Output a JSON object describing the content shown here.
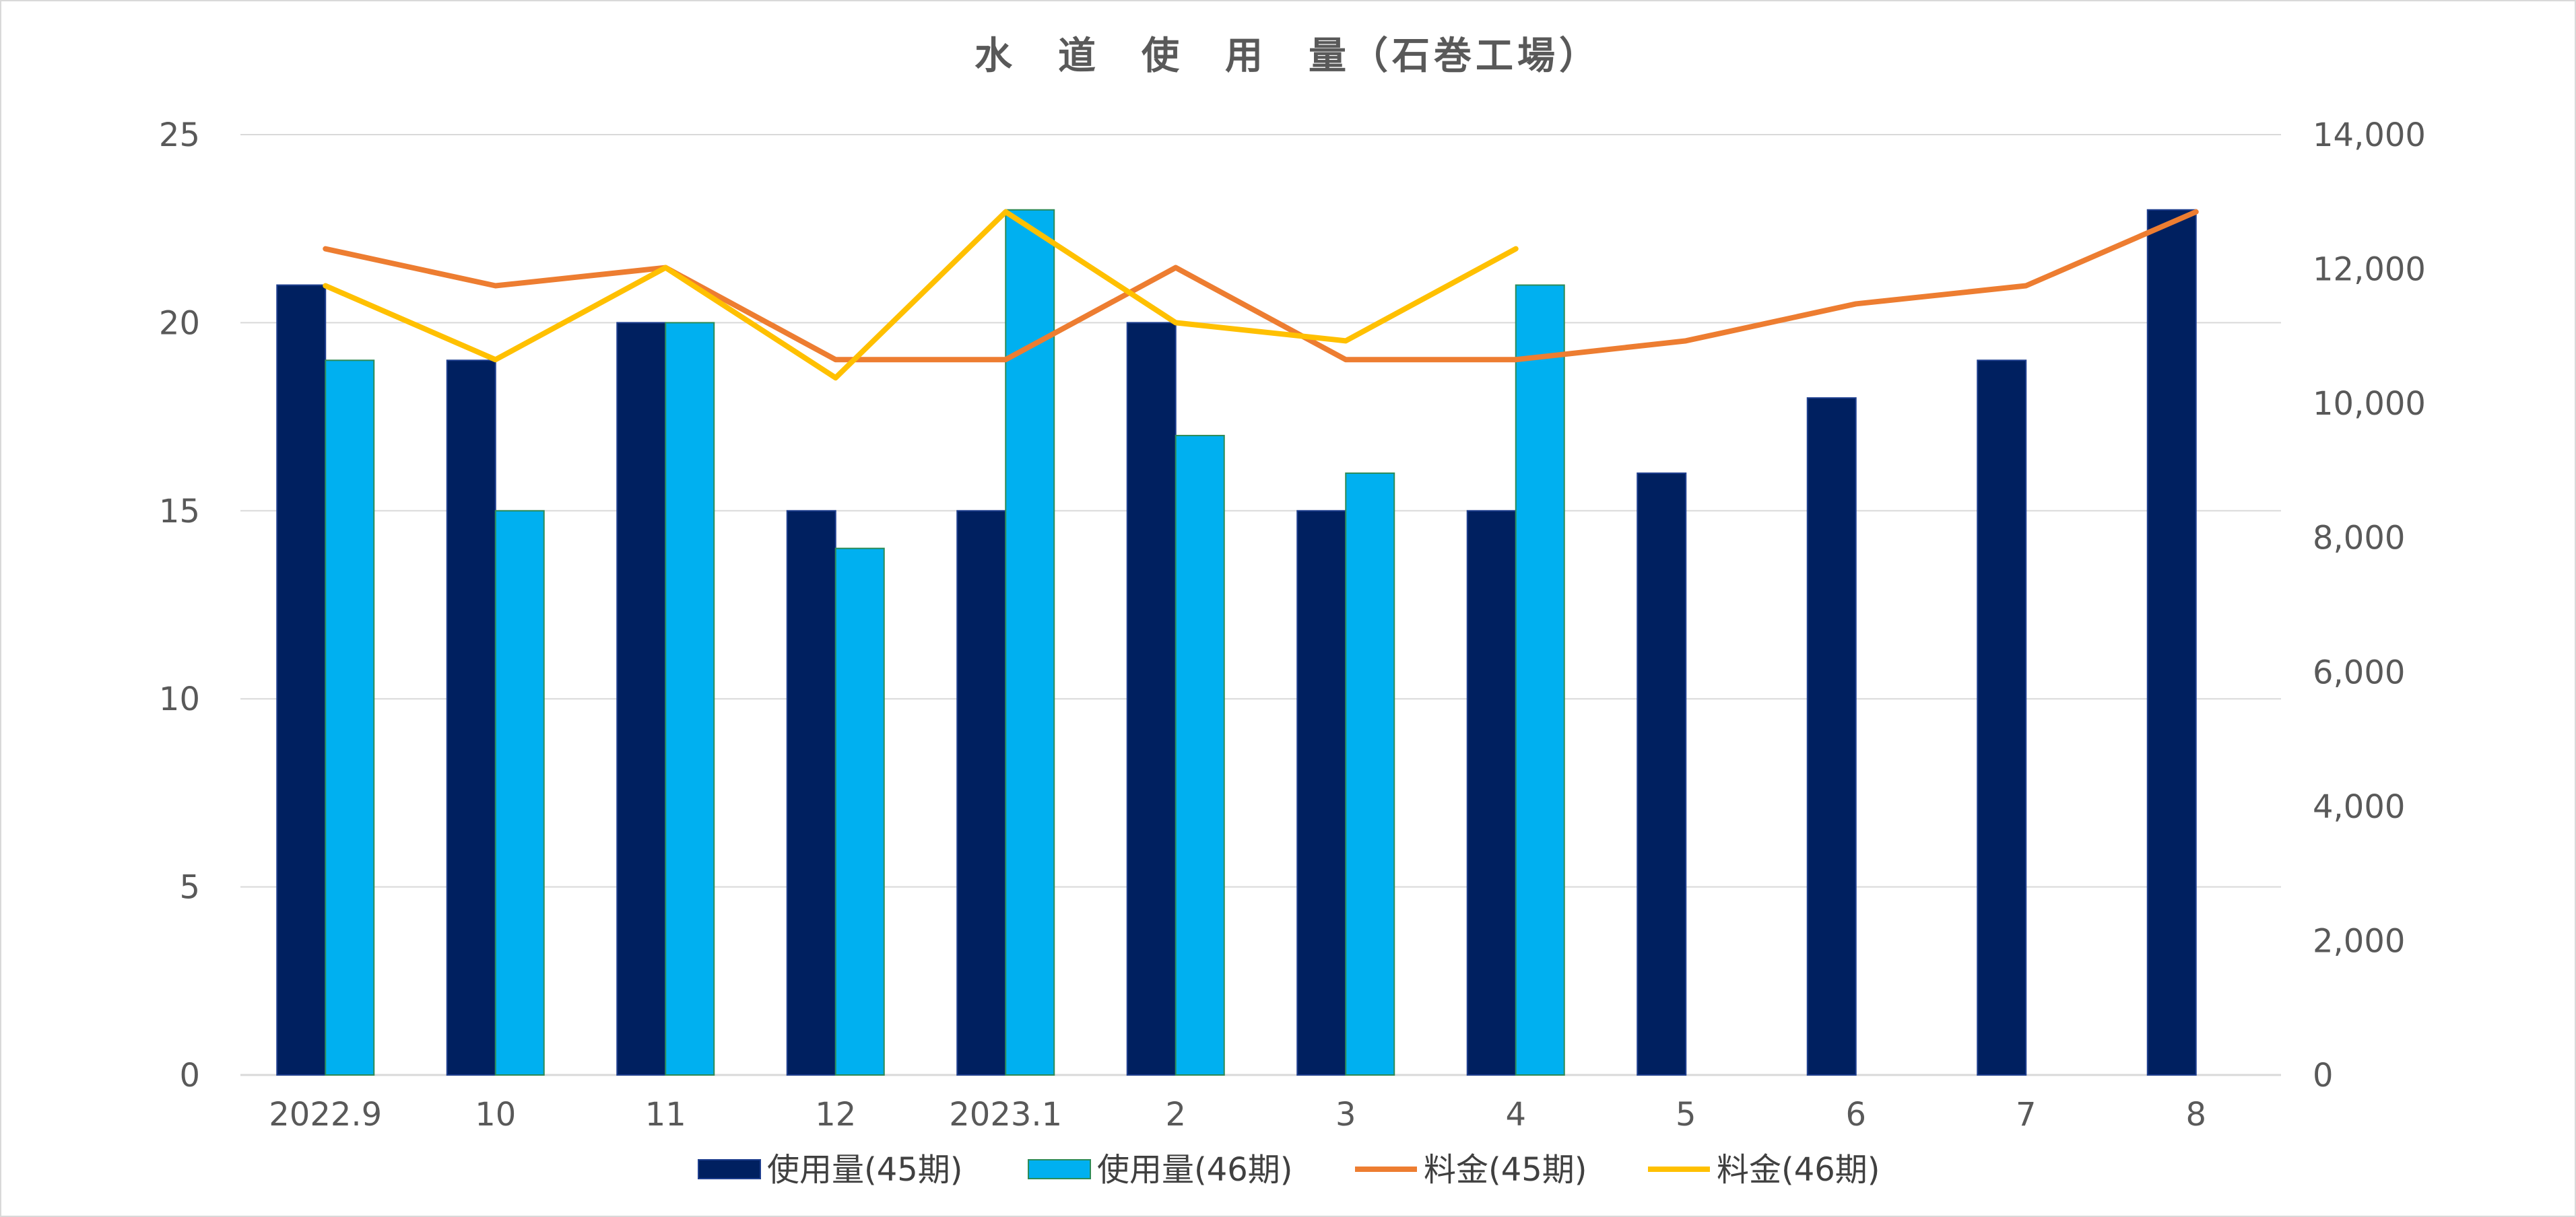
{
  "chart_data": {
    "type": "bar",
    "title": "水　道　使　用　量（石巻工場）",
    "categories": [
      "2022.9",
      "10",
      "11",
      "12",
      "2023.1",
      "2",
      "3",
      "4",
      "5",
      "6",
      "7",
      "8"
    ],
    "series": [
      {
        "name": "使用量(45期)",
        "kind": "bar",
        "axis": "left",
        "color": "#002060",
        "values": [
          21,
          19,
          20,
          15,
          15,
          20,
          15,
          15,
          16,
          18,
          19,
          23
        ]
      },
      {
        "name": "使用量(46期)",
        "kind": "bar",
        "axis": "left",
        "color": "#00b0f0",
        "values": [
          19,
          15,
          20,
          14,
          23,
          17,
          16,
          21,
          null,
          null,
          null,
          null
        ]
      },
      {
        "name": "料金(45期)",
        "kind": "line",
        "axis": "right",
        "color": "#ed7d31",
        "values": [
          12300,
          11750,
          12020,
          10650,
          10650,
          12020,
          10650,
          10650,
          10930,
          11480,
          11750,
          12850
        ]
      },
      {
        "name": "料金(46期)",
        "kind": "line",
        "axis": "right",
        "color": "#ffc000",
        "values": [
          11750,
          10650,
          12020,
          10380,
          12850,
          11200,
          10930,
          12300,
          null,
          null,
          null,
          null
        ]
      }
    ],
    "y_left": {
      "min": 0,
      "max": 25,
      "ticks": [
        0,
        5,
        10,
        15,
        20,
        25
      ],
      "tick_labels": [
        "0",
        "5",
        "10",
        "15",
        "20",
        "25"
      ]
    },
    "y_right": {
      "min": 0,
      "max": 14000,
      "ticks": [
        0,
        2000,
        4000,
        6000,
        8000,
        10000,
        12000,
        14000
      ],
      "tick_labels": [
        "0",
        "2,000",
        "4,000",
        "6,000",
        "8,000",
        "10,000",
        "12,000",
        "14,000"
      ]
    },
    "grid": true,
    "gridline_color": "#d9d9d9",
    "legend_position": "bottom"
  }
}
